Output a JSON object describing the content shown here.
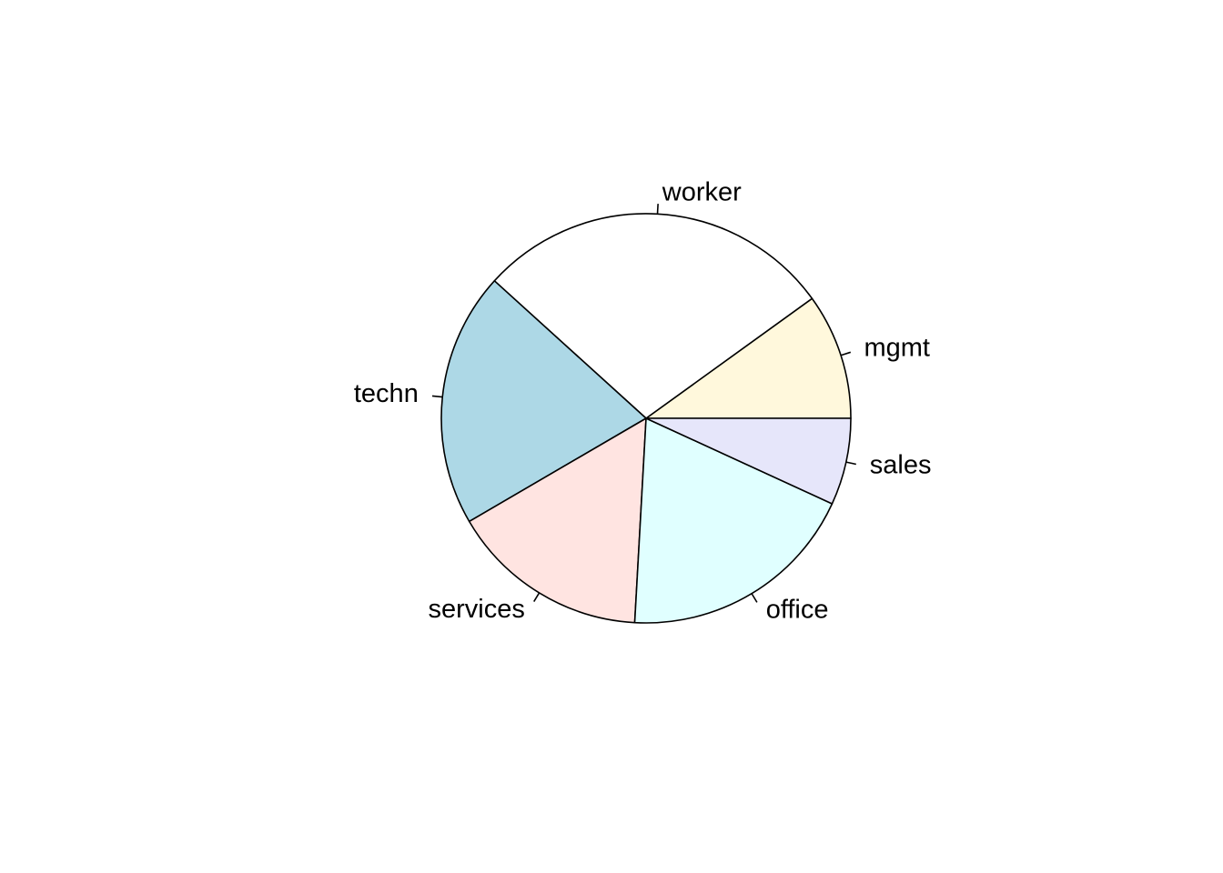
{
  "chart_data": {
    "type": "pie",
    "title": "",
    "direction": "counterclockwise",
    "start": "3 o'clock",
    "categories": [
      "mgmt",
      "worker",
      "techn",
      "services",
      "office",
      "sales"
    ],
    "values": [
      4.5,
      12.8,
      9.1,
      7.1,
      8.6,
      3.1
    ],
    "colors": [
      "#FFF8DC",
      "#FFFFFF",
      "#ADD8E6",
      "#FFE4E1",
      "#E0FFFF",
      "#E6E6FA"
    ],
    "slices": [
      {
        "label": "worker",
        "value": 12.8,
        "color": "#FFFFFF"
      },
      {
        "label": "techn",
        "value": 9.1,
        "color": "#ADD8E6"
      },
      {
        "label": "services",
        "value": 7.1,
        "color": "#FFE4E1"
      },
      {
        "label": "office",
        "value": 8.6,
        "color": "#E0FFFF"
      },
      {
        "label": "sales",
        "value": 3.1,
        "color": "#E6E6FA"
      },
      {
        "label": "mgmt",
        "value": 4.5,
        "color": "#FFF8DC"
      }
    ]
  }
}
